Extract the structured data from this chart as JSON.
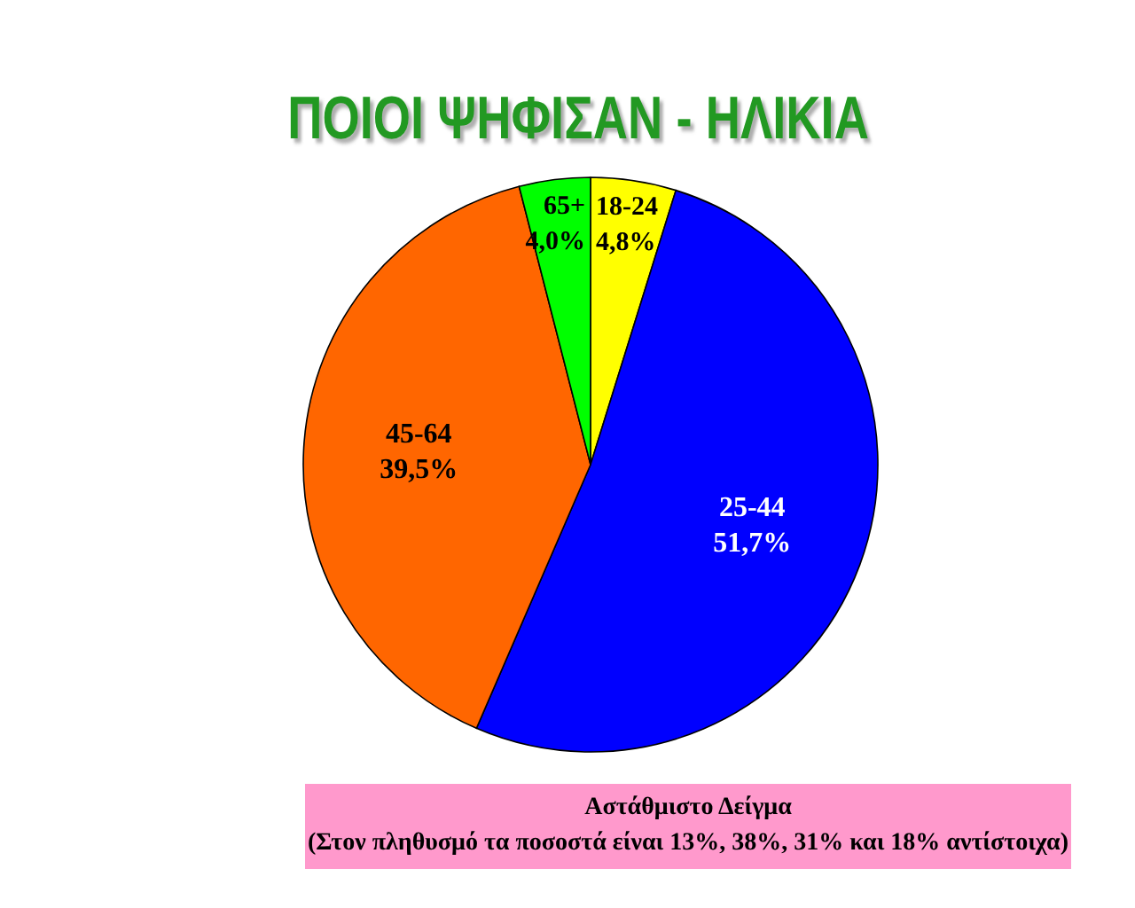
{
  "chart_data": {
    "type": "pie",
    "title": "ΠΟΙΟΙ ΨΗΦΙΣΑΝ - ΗΛΙΚΙΑ",
    "categories": [
      "18-24",
      "25-44",
      "45-64",
      "65+"
    ],
    "values": [
      4.8,
      51.7,
      39.5,
      4.0
    ],
    "colors": [
      "#ffff00",
      "#0000ff",
      "#ff6600",
      "#00ff00"
    ],
    "value_labels": [
      "4,8%",
      "51,7%",
      "39,5%",
      "4,0%"
    ],
    "annotations": [
      "Αστάθμιστο Δείγμα",
      "(Στον πληθυσμό τα ποσοστά είναι 13%, 38%, 31% και 18% αντίστοιχα)"
    ]
  }
}
